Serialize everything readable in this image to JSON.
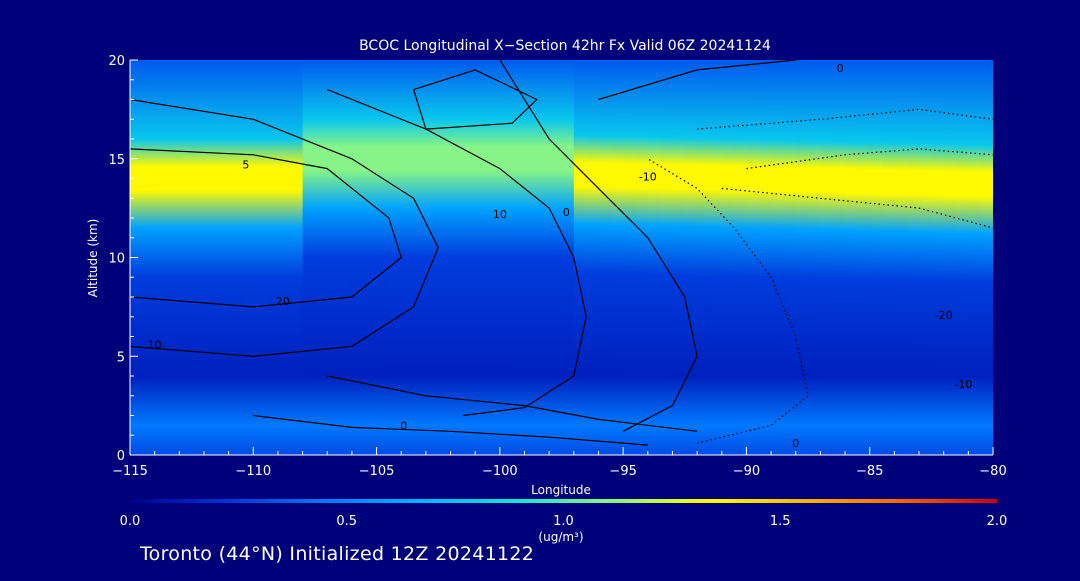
{
  "chart_data": {
    "type": "heatmap",
    "title": "BCOC Longitudinal X−Section 42hr  Fx Valid 06Z 20241124",
    "xlabel": "Longitude",
    "ylabel": "Altitude (km)",
    "xlim": [
      -115,
      -80
    ],
    "ylim": [
      0,
      20
    ],
    "x_ticks": [
      "−115",
      "−110",
      "−105",
      "−100",
      "−95",
      "−90",
      "−85",
      "−80"
    ],
    "x_tick_values": [
      -115,
      -110,
      -105,
      -100,
      -95,
      -90,
      -85,
      -80
    ],
    "y_ticks": [
      "0",
      "5",
      "10",
      "15",
      "20"
    ],
    "y_tick_values": [
      0,
      5,
      10,
      15,
      20
    ],
    "colorbar": {
      "min": 0.0,
      "max": 2.0,
      "tick_labels": [
        "0.0",
        "0.5",
        "1.0",
        "1.5",
        "2.0"
      ],
      "tick_values": [
        0.0,
        0.5,
        1.0,
        1.5,
        2.0
      ],
      "units": "(ug/m³)",
      "colors": [
        "#00008c",
        "#0033d9",
        "#0077ff",
        "#00b4ff",
        "#14e6d2",
        "#8cf582",
        "#ffff00",
        "#ffb400",
        "#ff6400",
        "#c80000"
      ]
    },
    "field_peak_bands": [
      {
        "lon_range": [
          -115,
          -108
        ],
        "alt": 14.0,
        "value": 1.35
      },
      {
        "lon_range": [
          -108,
          -97
        ],
        "alt": 15.0,
        "value": 1.1
      },
      {
        "lon_range": [
          -97,
          -80
        ],
        "alt": 14.2,
        "value": 1.35
      }
    ],
    "contour_labels": [
      {
        "text": "0",
        "lon": -86.2,
        "alt": 19.6
      },
      {
        "text": "-10",
        "lon": -94.0,
        "alt": 14.1
      },
      {
        "text": "10",
        "lon": -100.0,
        "alt": 12.2
      },
      {
        "text": "0",
        "lon": -97.3,
        "alt": 12.3
      },
      {
        "text": "5",
        "lon": -110.3,
        "alt": 14.7
      },
      {
        "text": "20",
        "lon": -108.8,
        "alt": 7.8
      },
      {
        "text": "10",
        "lon": -114.0,
        "alt": 5.6
      },
      {
        "text": "0",
        "lon": -103.9,
        "alt": 1.5
      },
      {
        "text": "0",
        "lon": -88.0,
        "alt": 0.6
      },
      {
        "text": "-10",
        "lon": -81.2,
        "alt": 3.6
      },
      {
        "text": "-20",
        "lon": -82.0,
        "alt": 7.1
      }
    ]
  },
  "footer": {
    "location_text": "Toronto (44°N) Initialized 12Z 20241122"
  }
}
